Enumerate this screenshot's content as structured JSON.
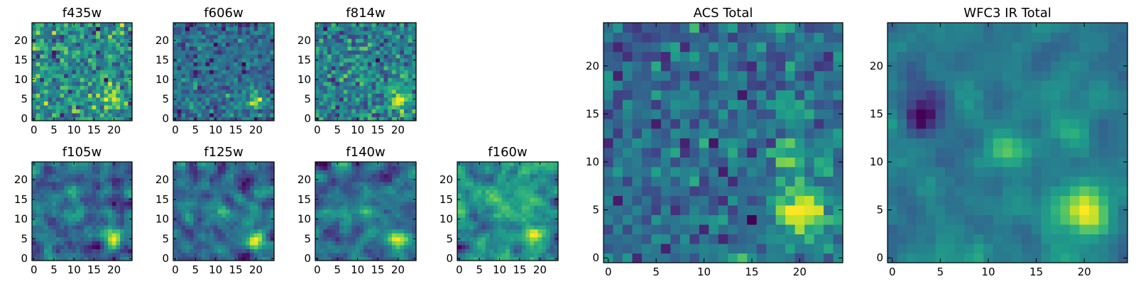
{
  "chart_data": [
    {
      "type": "heatmap",
      "title": "f435w",
      "ylabel": "",
      "xlabel": "",
      "xlim": [
        0,
        25
      ],
      "ylim": [
        0,
        25
      ],
      "xticks": [
        "0",
        "5",
        "10",
        "15",
        "20"
      ],
      "yticks": [
        "0",
        "5",
        "10",
        "15",
        "20"
      ],
      "grid_size": 25,
      "colormap": "viridis",
      "seed": 11,
      "noise": 0.9,
      "blur": 0,
      "sources": [
        {
          "x": 20,
          "y": 5,
          "amp": 0.8,
          "sigma": 2.0
        }
      ]
    },
    {
      "type": "heatmap",
      "title": "f606w",
      "ylabel": "",
      "xlabel": "",
      "xlim": [
        0,
        25
      ],
      "ylim": [
        0,
        25
      ],
      "xticks": [
        "0",
        "5",
        "10",
        "15",
        "20"
      ],
      "yticks": [
        "0",
        "5",
        "10",
        "15",
        "20"
      ],
      "grid_size": 25,
      "colormap": "viridis",
      "seed": 23,
      "noise": 0.8,
      "blur": 0,
      "sources": [
        {
          "x": 20,
          "y": 4.5,
          "amp": 1.5,
          "sigma": 1.4
        }
      ]
    },
    {
      "type": "heatmap",
      "title": "f814w",
      "ylabel": "",
      "xlabel": "",
      "xlim": [
        0,
        25
      ],
      "ylim": [
        0,
        25
      ],
      "xticks": [
        "0",
        "5",
        "10",
        "15",
        "20"
      ],
      "yticks": [
        "0",
        "5",
        "10",
        "15",
        "20"
      ],
      "grid_size": 25,
      "colormap": "viridis",
      "seed": 37,
      "noise": 0.85,
      "blur": 0,
      "sources": [
        {
          "x": 20,
          "y": 5,
          "amp": 1.3,
          "sigma": 1.8
        }
      ]
    },
    {
      "type": "heatmap",
      "title": "f105w",
      "ylabel": "",
      "xlabel": "",
      "xlim": [
        0,
        25
      ],
      "ylim": [
        0,
        25
      ],
      "xticks": [
        "0",
        "5",
        "10",
        "15",
        "20"
      ],
      "yticks": [
        "0",
        "5",
        "10",
        "15",
        "20"
      ],
      "grid_size": 25,
      "colormap": "viridis",
      "seed": 41,
      "noise": 1.0,
      "blur": 1,
      "sources": [
        {
          "x": 20,
          "y": 5,
          "amp": 1.6,
          "sigma": 1.6
        },
        {
          "x": 12,
          "y": 12,
          "amp": 0.8,
          "sigma": 1.3
        }
      ]
    },
    {
      "type": "heatmap",
      "title": "f125w",
      "ylabel": "",
      "xlabel": "",
      "xlim": [
        0,
        25
      ],
      "ylim": [
        0,
        25
      ],
      "xticks": [
        "0",
        "5",
        "10",
        "15",
        "20"
      ],
      "yticks": [
        "0",
        "5",
        "10",
        "15",
        "20"
      ],
      "grid_size": 25,
      "colormap": "viridis",
      "seed": 53,
      "noise": 1.0,
      "blur": 1,
      "sources": [
        {
          "x": 20,
          "y": 5,
          "amp": 1.5,
          "sigma": 1.8
        },
        {
          "x": 12,
          "y": 12,
          "amp": 0.7,
          "sigma": 1.4
        }
      ]
    },
    {
      "type": "heatmap",
      "title": "f140w",
      "ylabel": "",
      "xlabel": "",
      "xlim": [
        0,
        25
      ],
      "ylim": [
        0,
        25
      ],
      "xticks": [
        "0",
        "5",
        "10",
        "15",
        "20"
      ],
      "yticks": [
        "0",
        "5",
        "10",
        "15",
        "20"
      ],
      "grid_size": 25,
      "colormap": "viridis",
      "seed": 67,
      "noise": 1.0,
      "blur": 1,
      "sources": [
        {
          "x": 20,
          "y": 5,
          "amp": 1.7,
          "sigma": 1.6
        },
        {
          "x": 12,
          "y": 12,
          "amp": 0.9,
          "sigma": 1.2
        }
      ]
    },
    {
      "type": "heatmap",
      "title": "f160w",
      "ylabel": "",
      "xlabel": "",
      "xlim": [
        0,
        25
      ],
      "ylim": [
        0,
        25
      ],
      "xticks": [
        "0",
        "5",
        "10",
        "15",
        "20"
      ],
      "yticks": [
        "0",
        "5",
        "10",
        "15",
        "20"
      ],
      "grid_size": 25,
      "colormap": "viridis",
      "seed": 79,
      "noise": 1.1,
      "blur": 1,
      "sources": [
        {
          "x": 19,
          "y": 5,
          "amp": 0.9,
          "sigma": 1.5
        },
        {
          "x": 12,
          "y": 13,
          "amp": 0.7,
          "sigma": 2.5
        }
      ]
    },
    {
      "type": "heatmap",
      "title": "ACS Total",
      "ylabel": "",
      "xlabel": "",
      "xlim": [
        0,
        25
      ],
      "ylim": [
        0,
        25
      ],
      "xticks": [
        "0",
        "5",
        "10",
        "15",
        "20"
      ],
      "yticks": [
        "0",
        "5",
        "10",
        "15",
        "20"
      ],
      "grid_size": 25,
      "colormap": "viridis",
      "seed": 97,
      "noise": 0.7,
      "blur": 0,
      "sources": [
        {
          "x": 20,
          "y": 5,
          "amp": 1.8,
          "sigma": 1.8
        },
        {
          "x": 19,
          "y": 11,
          "amp": 0.9,
          "sigma": 1.3
        },
        {
          "x": 19,
          "y": 15,
          "amp": 0.6,
          "sigma": 1.5
        }
      ]
    },
    {
      "type": "heatmap",
      "title": "WFC3 IR Total",
      "ylabel": "",
      "xlabel": "",
      "xlim": [
        0,
        25
      ],
      "ylim": [
        0,
        25
      ],
      "xticks": [
        "0",
        "5",
        "10",
        "15",
        "20"
      ],
      "yticks": [
        "0",
        "5",
        "10",
        "15",
        "20"
      ],
      "grid_size": 25,
      "colormap": "viridis",
      "seed": 113,
      "noise": 0.7,
      "blur": 1,
      "sources": [
        {
          "x": 20,
          "y": 5,
          "amp": 2.2,
          "sigma": 1.9
        },
        {
          "x": 12,
          "y": 12,
          "amp": 1.2,
          "sigma": 1.5
        },
        {
          "x": 3,
          "y": 15,
          "amp": -1.6,
          "sigma": 1.3
        },
        {
          "x": 18,
          "y": 14,
          "amp": 0.5,
          "sigma": 2.0
        }
      ]
    }
  ]
}
